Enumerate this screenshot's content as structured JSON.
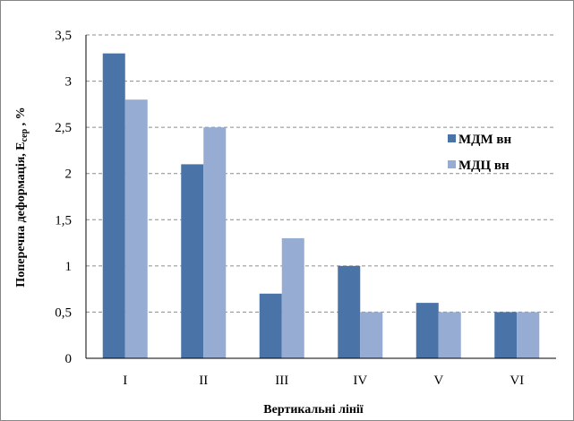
{
  "chart_data": {
    "type": "bar",
    "categories": [
      "I",
      "II",
      "III",
      "IV",
      "V",
      "VI"
    ],
    "series": [
      {
        "name": "МДМ вн",
        "values": [
          3.3,
          2.1,
          0.7,
          1.0,
          0.6,
          0.5
        ],
        "color": "#4a73a8"
      },
      {
        "name": "МДЦ вн",
        "values": [
          2.8,
          2.5,
          1.3,
          0.5,
          0.5,
          0.5
        ],
        "color": "#97acd3"
      }
    ],
    "y_ticks": [
      "0",
      "0,5",
      "1",
      "1,5",
      "2",
      "2,5",
      "3",
      "3,5"
    ],
    "ylim": [
      0,
      3.5
    ],
    "ylabel": "Поперечна деформація, Е",
    "ylabel_sub": "сер",
    "ylabel_suffix": " , %",
    "xlabel": "Вертикальні лінії",
    "grid": true,
    "legend_position": "right"
  }
}
